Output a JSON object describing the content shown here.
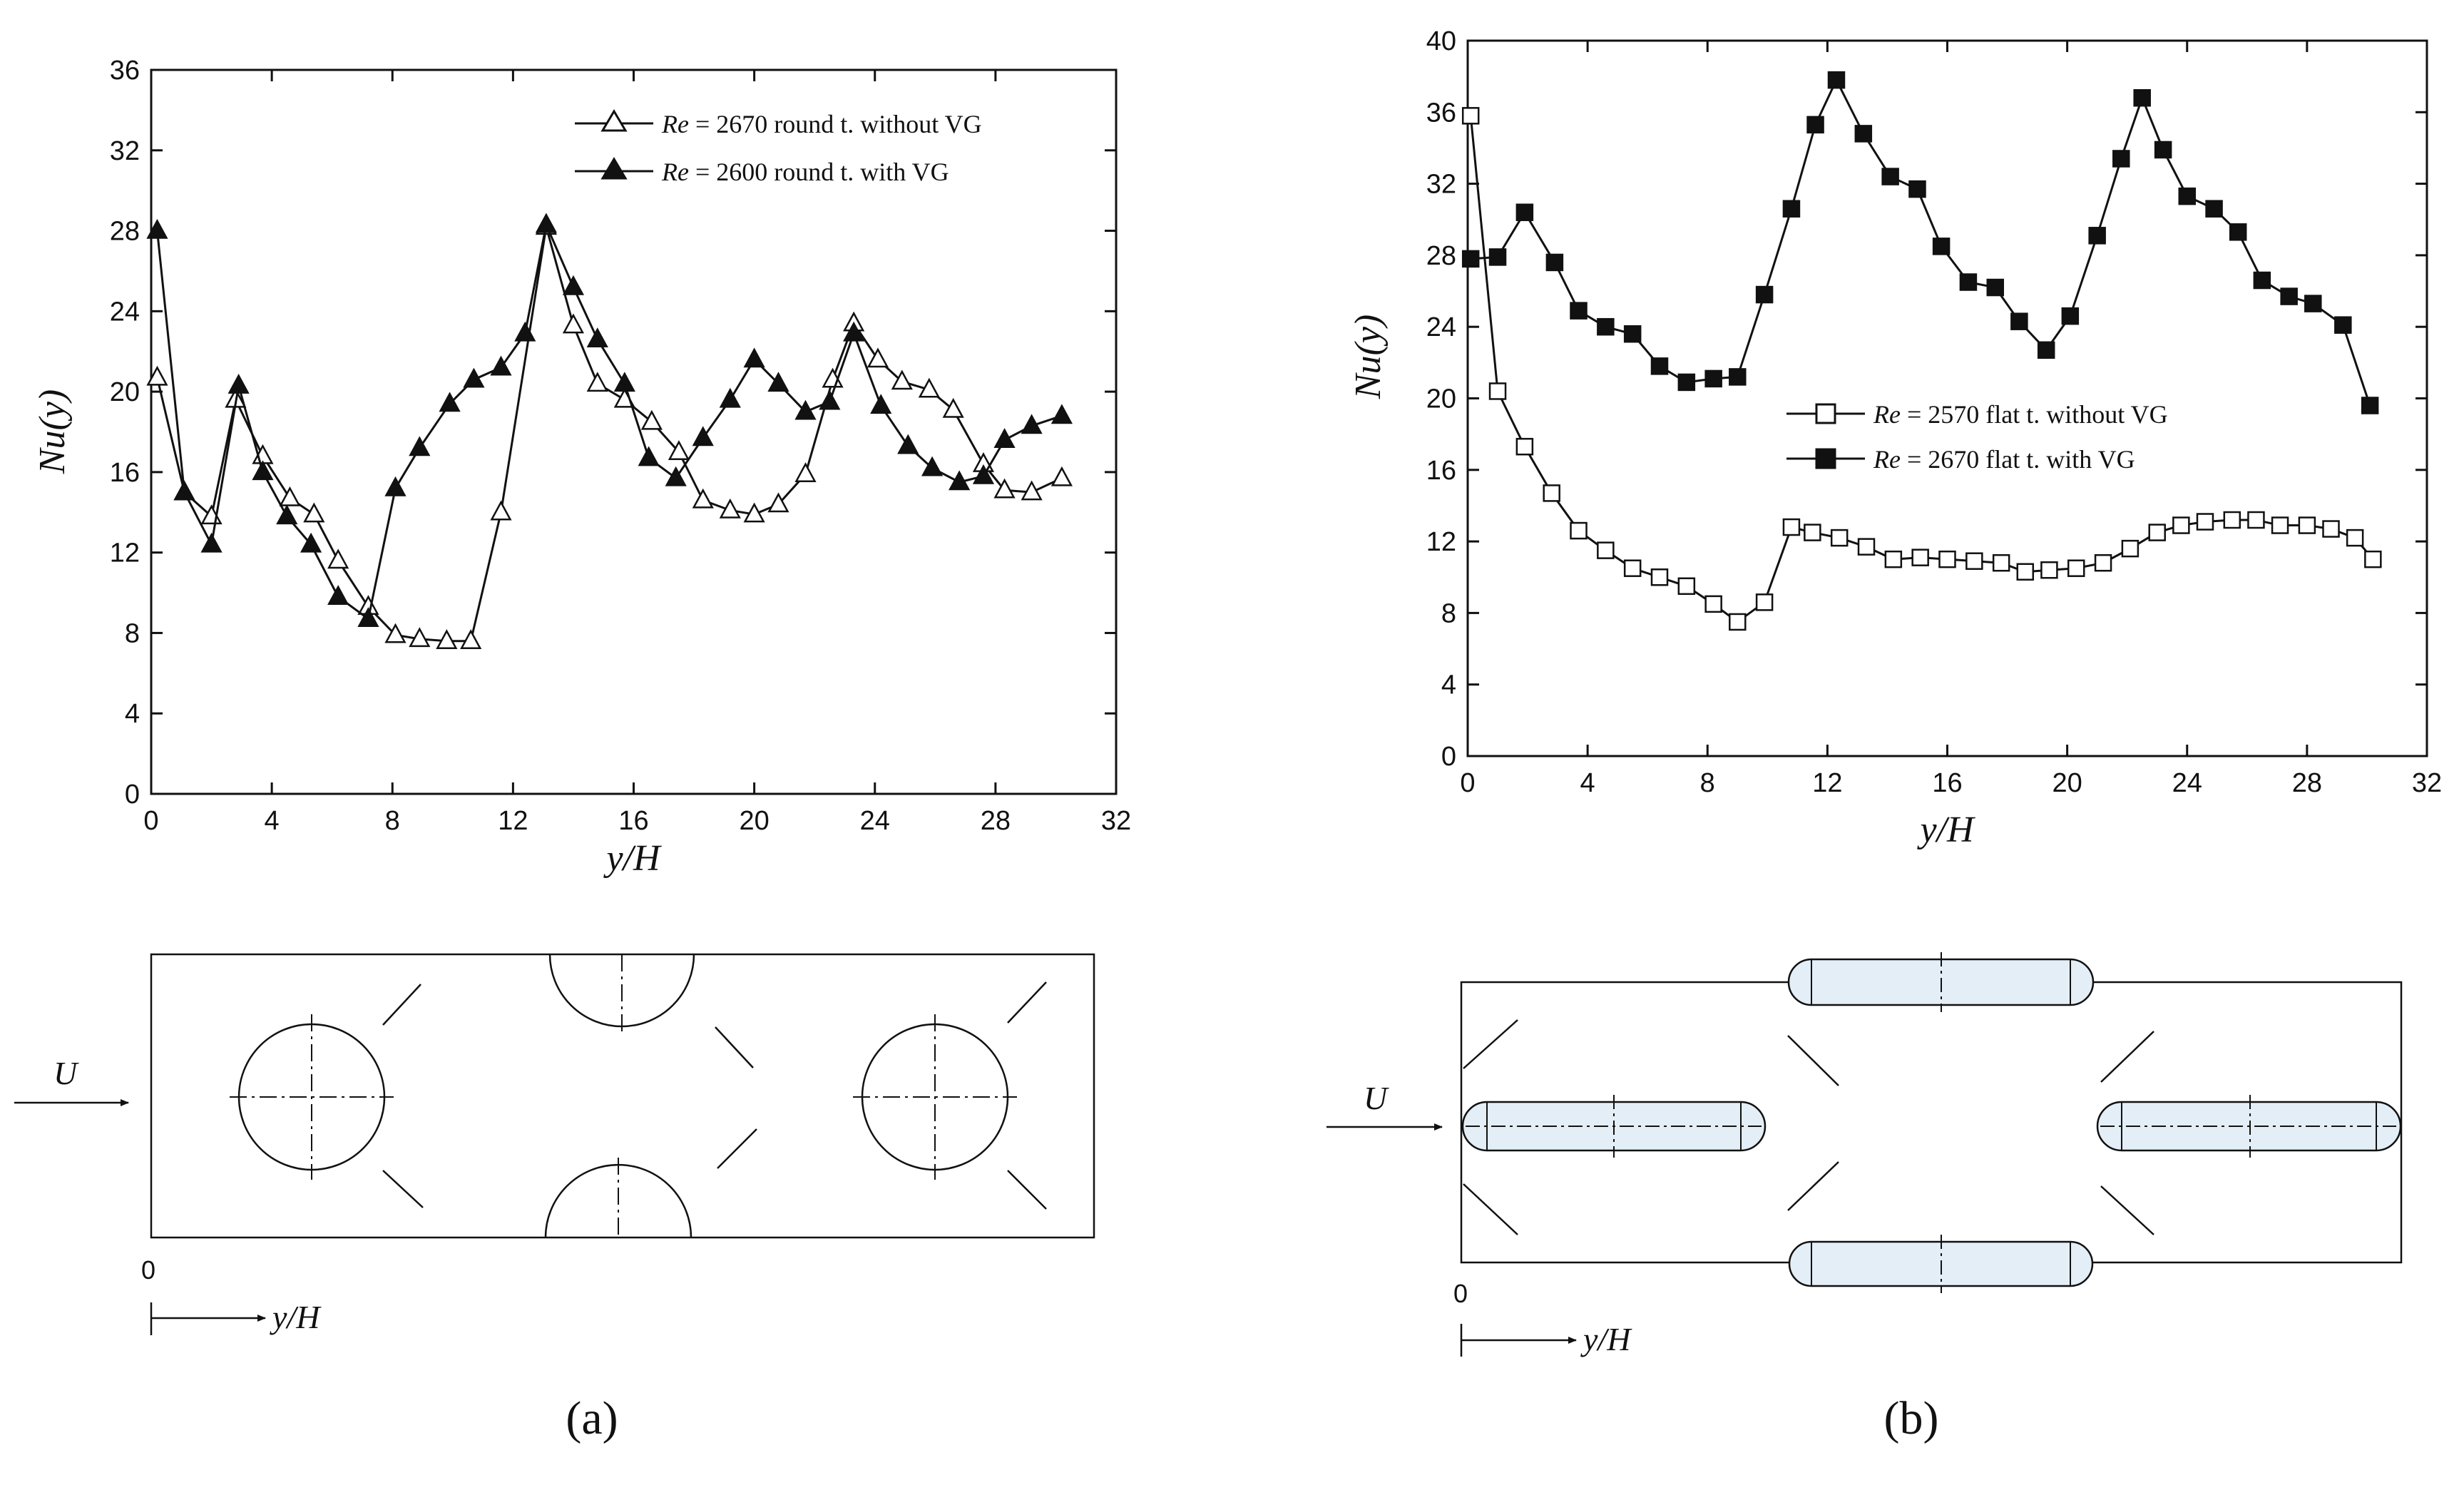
{
  "chart_data": [
    {
      "type": "line",
      "xlabel": "y/H",
      "ylabel": "Nu(y)",
      "xlim": [
        0,
        32
      ],
      "ylim": [
        0,
        36
      ],
      "xticks": [
        "0",
        "4",
        "8",
        "12",
        "16",
        "20",
        "24",
        "28",
        "32"
      ],
      "yticks": [
        "0",
        "4",
        "8",
        "12",
        "16",
        "20",
        "24",
        "28",
        "32",
        "36"
      ],
      "legend_position": "top-right",
      "series": [
        {
          "name": "round-without-vg",
          "legend_re": "Re",
          "legend_text": " = 2670 round t. without VG",
          "marker": "triangle-open",
          "points": [
            [
              0.2,
              20.7
            ],
            [
              1.1,
              15.0
            ],
            [
              2.0,
              13.8
            ],
            [
              2.8,
              19.6
            ],
            [
              3.7,
              16.8
            ],
            [
              4.6,
              14.7
            ],
            [
              5.4,
              13.9
            ],
            [
              6.2,
              11.6
            ],
            [
              7.2,
              9.3
            ],
            [
              8.1,
              7.9
            ],
            [
              8.9,
              7.7
            ],
            [
              9.8,
              7.6
            ],
            [
              10.6,
              7.6
            ],
            [
              11.6,
              14.0
            ],
            [
              13.1,
              28.2
            ],
            [
              14.0,
              23.3
            ],
            [
              14.8,
              20.4
            ],
            [
              15.7,
              19.6
            ],
            [
              16.6,
              18.5
            ],
            [
              17.5,
              17.0
            ],
            [
              18.3,
              14.6
            ],
            [
              19.2,
              14.1
            ],
            [
              20.0,
              13.9
            ],
            [
              20.8,
              14.4
            ],
            [
              21.7,
              15.9
            ],
            [
              22.6,
              20.6
            ],
            [
              23.3,
              23.4
            ],
            [
              24.1,
              21.6
            ],
            [
              24.9,
              20.5
            ],
            [
              25.8,
              20.1
            ],
            [
              26.6,
              19.1
            ],
            [
              27.6,
              16.4
            ],
            [
              28.3,
              15.1
            ],
            [
              29.2,
              15.0
            ],
            [
              30.2,
              15.7
            ]
          ]
        },
        {
          "name": "round-with-vg",
          "legend_re": "Re",
          "legend_text": " = 2600 round t. with VG",
          "marker": "triangle-filled",
          "points": [
            [
              0.2,
              28.0
            ],
            [
              1.1,
              15.0
            ],
            [
              2.0,
              12.4
            ],
            [
              2.9,
              20.3
            ],
            [
              3.7,
              16.0
            ],
            [
              4.5,
              13.8
            ],
            [
              5.3,
              12.4
            ],
            [
              6.2,
              9.8
            ],
            [
              7.2,
              8.7
            ],
            [
              8.1,
              15.2
            ],
            [
              8.9,
              17.2
            ],
            [
              9.9,
              19.4
            ],
            [
              10.7,
              20.6
            ],
            [
              11.6,
              21.2
            ],
            [
              12.4,
              22.9
            ],
            [
              13.1,
              28.3
            ],
            [
              14.0,
              25.2
            ],
            [
              14.8,
              22.6
            ],
            [
              15.7,
              20.4
            ],
            [
              16.5,
              16.7
            ],
            [
              17.4,
              15.7
            ],
            [
              18.3,
              17.7
            ],
            [
              19.2,
              19.6
            ],
            [
              20.0,
              21.6
            ],
            [
              20.8,
              20.4
            ],
            [
              21.7,
              19.0
            ],
            [
              22.5,
              19.5
            ],
            [
              23.3,
              22.9
            ],
            [
              24.2,
              19.3
            ],
            [
              25.1,
              17.3
            ],
            [
              25.9,
              16.2
            ],
            [
              26.8,
              15.5
            ],
            [
              27.6,
              15.8
            ],
            [
              28.3,
              17.6
            ],
            [
              29.2,
              18.3
            ],
            [
              30.2,
              18.8
            ]
          ]
        }
      ]
    },
    {
      "type": "line",
      "xlabel": "y/H",
      "ylabel": "Nu(y)",
      "xlim": [
        0,
        32
      ],
      "ylim": [
        0,
        40
      ],
      "xticks": [
        "0",
        "4",
        "8",
        "12",
        "16",
        "20",
        "24",
        "28",
        "32"
      ],
      "yticks": [
        "0",
        "4",
        "8",
        "12",
        "16",
        "20",
        "24",
        "28",
        "32",
        "36",
        "40"
      ],
      "legend_position": "center-left",
      "series": [
        {
          "name": "flat-without-vg",
          "legend_re": "Re",
          "legend_text": " = 2570 flat t. without VG",
          "marker": "square-open",
          "points": [
            [
              0.1,
              35.8
            ],
            [
              1.0,
              20.4
            ],
            [
              1.9,
              17.3
            ],
            [
              2.8,
              14.7
            ],
            [
              3.7,
              12.6
            ],
            [
              4.6,
              11.5
            ],
            [
              5.5,
              10.5
            ],
            [
              6.4,
              10.0
            ],
            [
              7.3,
              9.5
            ],
            [
              8.2,
              8.5
            ],
            [
              9.0,
              7.5
            ],
            [
              9.9,
              8.6
            ],
            [
              10.8,
              12.8
            ],
            [
              11.5,
              12.5
            ],
            [
              12.4,
              12.2
            ],
            [
              13.3,
              11.7
            ],
            [
              14.2,
              11.0
            ],
            [
              15.1,
              11.1
            ],
            [
              16.0,
              11.0
            ],
            [
              16.9,
              10.9
            ],
            [
              17.8,
              10.8
            ],
            [
              18.6,
              10.3
            ],
            [
              19.4,
              10.4
            ],
            [
              20.3,
              10.5
            ],
            [
              21.2,
              10.8
            ],
            [
              22.1,
              11.6
            ],
            [
              23.0,
              12.5
            ],
            [
              23.8,
              12.9
            ],
            [
              24.6,
              13.1
            ],
            [
              25.5,
              13.2
            ],
            [
              26.3,
              13.2
            ],
            [
              27.1,
              12.9
            ],
            [
              28.0,
              12.9
            ],
            [
              28.8,
              12.7
            ],
            [
              29.6,
              12.2
            ],
            [
              30.2,
              11.0
            ]
          ]
        },
        {
          "name": "flat-with-vg",
          "legend_re": "Re",
          "legend_text": " = 2670 flat t. with VG",
          "marker": "square-filled",
          "points": [
            [
              0.1,
              27.8
            ],
            [
              1.0,
              27.9
            ],
            [
              1.9,
              30.4
            ],
            [
              2.9,
              27.6
            ],
            [
              3.7,
              24.9
            ],
            [
              4.6,
              24.0
            ],
            [
              5.5,
              23.6
            ],
            [
              6.4,
              21.8
            ],
            [
              7.3,
              20.9
            ],
            [
              8.2,
              21.1
            ],
            [
              9.0,
              21.2
            ],
            [
              9.9,
              25.8
            ],
            [
              10.8,
              30.6
            ],
            [
              11.6,
              35.3
            ],
            [
              12.3,
              37.8
            ],
            [
              13.2,
              34.8
            ],
            [
              14.1,
              32.4
            ],
            [
              15.0,
              31.7
            ],
            [
              15.8,
              28.5
            ],
            [
              16.7,
              26.5
            ],
            [
              17.6,
              26.2
            ],
            [
              18.4,
              24.3
            ],
            [
              19.3,
              22.7
            ],
            [
              20.1,
              24.6
            ],
            [
              21.0,
              29.1
            ],
            [
              21.8,
              33.4
            ],
            [
              22.5,
              36.8
            ],
            [
              23.2,
              33.9
            ],
            [
              24.0,
              31.3
            ],
            [
              24.9,
              30.6
            ],
            [
              25.7,
              29.3
            ],
            [
              26.5,
              26.6
            ],
            [
              27.4,
              25.7
            ],
            [
              28.2,
              25.3
            ],
            [
              29.2,
              24.1
            ],
            [
              30.1,
              19.6
            ]
          ]
        }
      ]
    }
  ],
  "diagrams": {
    "a": {
      "flow_label": "U",
      "origin_label": "0",
      "axis_label": "y/H"
    },
    "b": {
      "flow_label": "U",
      "origin_label": "0",
      "axis_label": "y/H"
    }
  },
  "captions": {
    "a": "(a)",
    "b": "(b)"
  }
}
